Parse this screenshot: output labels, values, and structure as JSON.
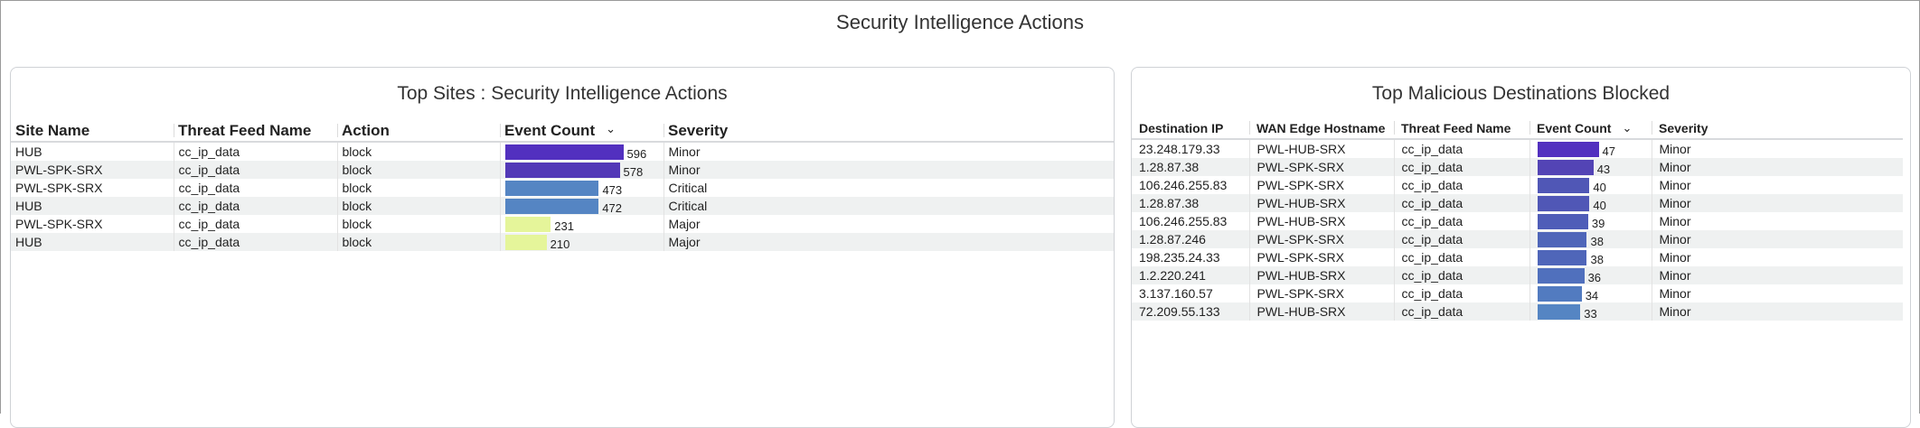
{
  "page_title": "Security Intelligence Actions",
  "left": {
    "title": "Top Sites : Security Intelligence Actions",
    "columns": [
      "Site Name",
      "Threat Feed Name",
      "Action",
      "Event Count",
      "Severity"
    ],
    "max": 596,
    "rows": [
      {
        "site": "HUB",
        "feed": "cc_ip_data",
        "action": "block",
        "count": 596,
        "color": "#5230bf",
        "severity": "Minor"
      },
      {
        "site": "PWL-SPK-SRX",
        "feed": "cc_ip_data",
        "action": "block",
        "count": 578,
        "color": "#5339b7",
        "severity": "Minor"
      },
      {
        "site": "PWL-SPK-SRX",
        "feed": "cc_ip_data",
        "action": "block",
        "count": 473,
        "color": "#5585c3",
        "severity": "Critical"
      },
      {
        "site": "HUB",
        "feed": "cc_ip_data",
        "action": "block",
        "count": 472,
        "color": "#5585c3",
        "severity": "Critical"
      },
      {
        "site": "PWL-SPK-SRX",
        "feed": "cc_ip_data",
        "action": "block",
        "count": 231,
        "color": "#e5f59a",
        "severity": "Major"
      },
      {
        "site": "HUB",
        "feed": "cc_ip_data",
        "action": "block",
        "count": 210,
        "color": "#e5f59a",
        "severity": "Major"
      }
    ]
  },
  "right": {
    "title": "Top Malicious Destinations Blocked",
    "columns": [
      "Destination IP",
      "WAN Edge Hostname",
      "Threat Feed Name",
      "Event Count",
      "Severity"
    ],
    "max": 47,
    "rows": [
      {
        "ip": "23.248.179.33",
        "host": "PWL-HUB-SRX",
        "feed": "cc_ip_data",
        "count": 47,
        "color": "#5230bf",
        "severity": "Minor"
      },
      {
        "ip": "1.28.87.38",
        "host": "PWL-SPK-SRX",
        "feed": "cc_ip_data",
        "count": 43,
        "color": "#5344b5",
        "severity": "Minor"
      },
      {
        "ip": "106.246.255.83",
        "host": "PWL-SPK-SRX",
        "feed": "cc_ip_data",
        "count": 40,
        "color": "#5057b6",
        "severity": "Minor"
      },
      {
        "ip": "1.28.87.38",
        "host": "PWL-HUB-SRX",
        "feed": "cc_ip_data",
        "count": 40,
        "color": "#5057b6",
        "severity": "Minor"
      },
      {
        "ip": "106.246.255.83",
        "host": "PWL-HUB-SRX",
        "feed": "cc_ip_data",
        "count": 39,
        "color": "#4f5db8",
        "severity": "Minor"
      },
      {
        "ip": "1.28.87.246",
        "host": "PWL-SPK-SRX",
        "feed": "cc_ip_data",
        "count": 38,
        "color": "#4f66b9",
        "severity": "Minor"
      },
      {
        "ip": "198.235.24.33",
        "host": "PWL-SPK-SRX",
        "feed": "cc_ip_data",
        "count": 38,
        "color": "#4f66b9",
        "severity": "Minor"
      },
      {
        "ip": "1.2.220.241",
        "host": "PWL-HUB-SRX",
        "feed": "cc_ip_data",
        "count": 36,
        "color": "#5070bd",
        "severity": "Minor"
      },
      {
        "ip": "3.137.160.57",
        "host": "PWL-SPK-SRX",
        "feed": "cc_ip_data",
        "count": 34,
        "color": "#527bc0",
        "severity": "Minor"
      },
      {
        "ip": "72.209.55.133",
        "host": "PWL-HUB-SRX",
        "feed": "cc_ip_data",
        "count": 33,
        "color": "#5585c3",
        "severity": "Minor"
      }
    ]
  }
}
